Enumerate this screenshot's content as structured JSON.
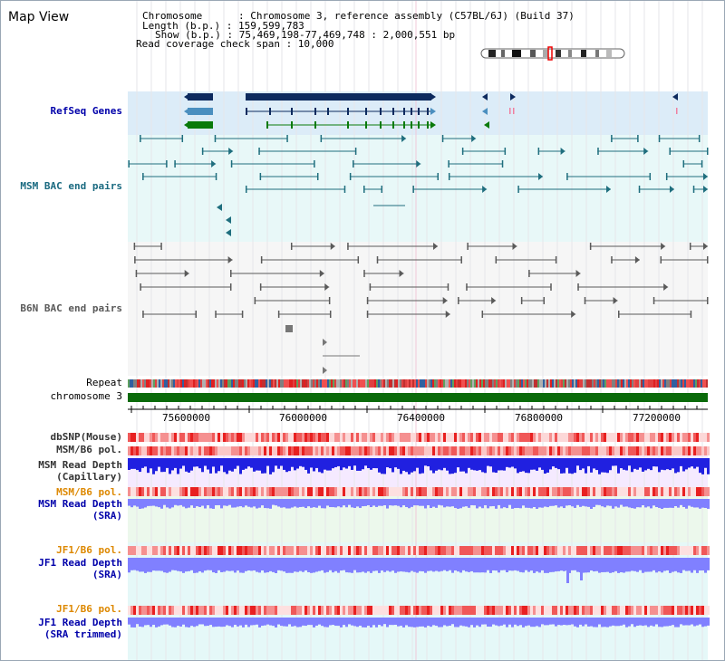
{
  "window": {
    "title": "Map View"
  },
  "header": {
    "line1": "Chromosome      : Chromosome 3, reference assembly (C57BL/6J) (Build 37)",
    "line2": "Length (b.p.) : 159,599,783",
    "line3": "Show (b.p.) : 75,469,198-77,469,748 : 2,000,551 bp",
    "line4": "Read coverage check span : 10,000"
  },
  "tracks": {
    "refseq": "RefSeq Genes",
    "msm_bac": "MSM BAC end pairs",
    "b6n_bac": "B6N BAC end pairs",
    "repeat": "Repeat",
    "chromosome": "chromosome 3",
    "dbsnp": "dbSNP(Mouse)",
    "msm_b6_pol_1": "MSM/B6 pol.",
    "msm_depth_cap_1": "MSM Read Depth",
    "msm_depth_cap_2": "(Capillary)",
    "msm_b6_pol_2": "MSM/B6 pol.",
    "msm_depth_sra_1": "MSM Read Depth",
    "msm_depth_sra_2": "(SRA)",
    "jf1_pol_1": "JF1/B6 pol.",
    "jf1_depth_sra_1": "JF1 Read Depth",
    "jf1_depth_sra_2": "(SRA)",
    "jf1_pol_2": "JF1/B6 pol.",
    "jf1_depth_trim_1": "JF1 Read Depth",
    "jf1_depth_trim_2": "(SRA trimmed)"
  },
  "axis": {
    "ticks": [
      "75600000",
      "76000000",
      "76400000",
      "76800000",
      "77200000"
    ]
  },
  "colors": {
    "gene_dark": "#0d2a5e",
    "gene_mid": "#4b8fbf",
    "gene_green": "#0a7a0a",
    "msm_bac": "#1f6e7e",
    "b6n_bac": "#5a5a5a",
    "chromosome": "#0a6a0a",
    "label_blue": "#0000aa",
    "label_teal": "#1a6a80",
    "label_orange": "#dd8800",
    "read_depth_cap": "#2020e0",
    "read_depth_sra": "#8080ff"
  }
}
